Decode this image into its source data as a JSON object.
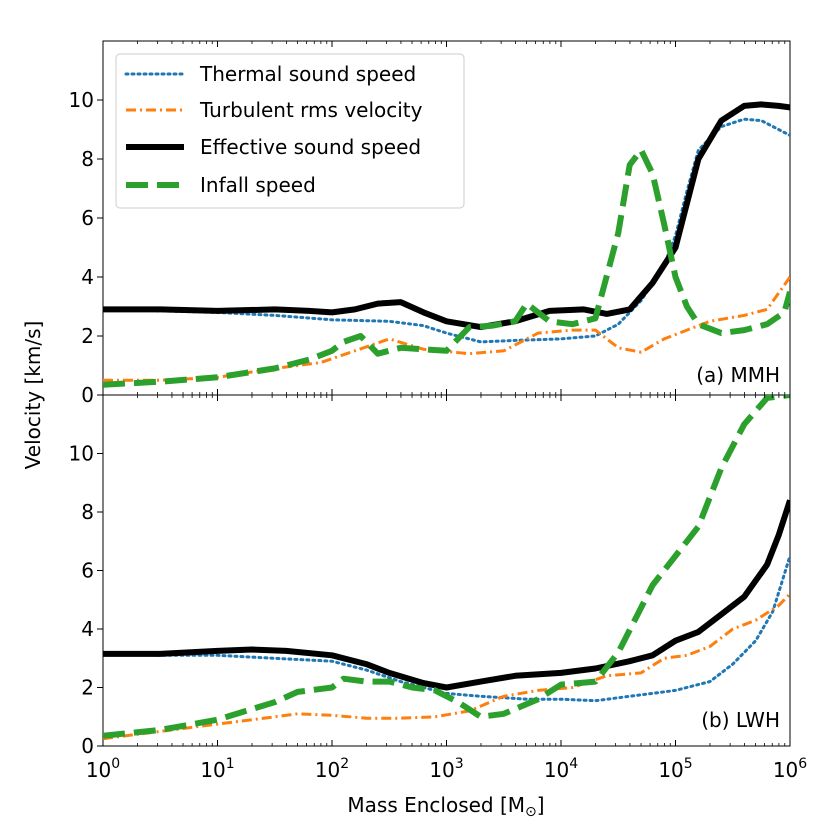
{
  "chart_data": {
    "type": "line",
    "xscale": "log",
    "xlim": [
      1,
      1000000
    ],
    "xlabel": "Mass Enclosed [M",
    "xlabel_sub": "⊙",
    "xlabel_end": "]",
    "ylabel": "Velocity [km/s]",
    "x_ticks": [
      {
        "value": 1,
        "base": "10",
        "exp": "0"
      },
      {
        "value": 10,
        "base": "10",
        "exp": "1"
      },
      {
        "value": 100,
        "base": "10",
        "exp": "2"
      },
      {
        "value": 1000,
        "base": "10",
        "exp": "3"
      },
      {
        "value": 10000,
        "base": "10",
        "exp": "4"
      },
      {
        "value": 100000,
        "base": "10",
        "exp": "5"
      },
      {
        "value": 1000000,
        "base": "10",
        "exp": "6"
      }
    ],
    "legend": [
      {
        "name": "Thermal sound speed",
        "color": "#1f77b4",
        "style": "dotted"
      },
      {
        "name": "Turbulent rms velocity",
        "color": "#ff7f0e",
        "style": "dashdot"
      },
      {
        "name": "Effective sound speed",
        "color": "#000000",
        "style": "solid"
      },
      {
        "name": "Infall speed",
        "color": "#2ca02c",
        "style": "dashed"
      }
    ],
    "panels": [
      {
        "label": "(a) MMH",
        "ylim": [
          0,
          12
        ],
        "yticks": [
          "0",
          "2",
          "4",
          "6",
          "8",
          "10"
        ],
        "ytick_values": [
          0,
          2,
          4,
          6,
          8,
          10
        ],
        "series": [
          {
            "name": "Thermal sound speed",
            "color": "#1f77b4",
            "style": "dotted",
            "points": [
              [
                0,
                2.9
              ],
              [
                0.5,
                2.85
              ],
              [
                1,
                2.8
              ],
              [
                1.5,
                2.7
              ],
              [
                2,
                2.55
              ],
              [
                2.5,
                2.5
              ],
              [
                2.8,
                2.35
              ],
              [
                3,
                2.1
              ],
              [
                3.3,
                1.8
              ],
              [
                3.6,
                1.85
              ],
              [
                4,
                1.9
              ],
              [
                4.3,
                2
              ],
              [
                4.5,
                2.4
              ],
              [
                4.7,
                3.2
              ],
              [
                4.9,
                4.4
              ],
              [
                5,
                5.4
              ],
              [
                5.1,
                6.9
              ],
              [
                5.2,
                8.3
              ],
              [
                5.4,
                9.1
              ],
              [
                5.6,
                9.35
              ],
              [
                5.75,
                9.3
              ],
              [
                5.9,
                9.0
              ],
              [
                6,
                8.8
              ]
            ]
          },
          {
            "name": "Turbulent rms velocity",
            "color": "#ff7f0e",
            "style": "dashdot",
            "points": [
              [
                0,
                0.5
              ],
              [
                0.5,
                0.5
              ],
              [
                1,
                0.6
              ],
              [
                1.5,
                0.9
              ],
              [
                1.9,
                1.1
              ],
              [
                2.2,
                1.5
              ],
              [
                2.5,
                1.9
              ],
              [
                2.8,
                1.55
              ],
              [
                3.2,
                1.4
              ],
              [
                3.5,
                1.5
              ],
              [
                3.8,
                2.1
              ],
              [
                4.1,
                2.2
              ],
              [
                4.3,
                2.2
              ],
              [
                4.5,
                1.6
              ],
              [
                4.7,
                1.45
              ],
              [
                4.9,
                1.9
              ],
              [
                5.1,
                2.2
              ],
              [
                5.3,
                2.5
              ],
              [
                5.6,
                2.7
              ],
              [
                5.8,
                2.9
              ],
              [
                6,
                4.0
              ]
            ]
          },
          {
            "name": "Effective sound speed",
            "color": "#000000",
            "style": "solid",
            "points": [
              [
                0,
                2.9
              ],
              [
                0.5,
                2.9
              ],
              [
                1,
                2.85
              ],
              [
                1.5,
                2.9
              ],
              [
                1.8,
                2.85
              ],
              [
                2,
                2.8
              ],
              [
                2.2,
                2.9
              ],
              [
                2.4,
                3.1
              ],
              [
                2.6,
                3.15
              ],
              [
                2.8,
                2.8
              ],
              [
                3,
                2.5
              ],
              [
                3.3,
                2.3
              ],
              [
                3.6,
                2.5
              ],
              [
                3.9,
                2.85
              ],
              [
                4.2,
                2.9
              ],
              [
                4.4,
                2.75
              ],
              [
                4.6,
                2.9
              ],
              [
                4.8,
                3.8
              ],
              [
                5,
                5.0
              ],
              [
                5.2,
                8.0
              ],
              [
                5.4,
                9.3
              ],
              [
                5.6,
                9.8
              ],
              [
                5.75,
                9.85
              ],
              [
                5.9,
                9.8
              ],
              [
                6,
                9.75
              ]
            ]
          },
          {
            "name": "Infall speed",
            "color": "#2ca02c",
            "style": "dashed",
            "points": [
              [
                0,
                0.35
              ],
              [
                0.5,
                0.45
              ],
              [
                1,
                0.6
              ],
              [
                1.5,
                0.9
              ],
              [
                1.8,
                1.2
              ],
              [
                2,
                1.5
              ],
              [
                2.1,
                1.8
              ],
              [
                2.25,
                2.0
              ],
              [
                2.4,
                1.4
              ],
              [
                2.6,
                1.6
              ],
              [
                2.8,
                1.55
              ],
              [
                3,
                1.5
              ],
              [
                3.2,
                2.3
              ],
              [
                3.4,
                2.35
              ],
              [
                3.6,
                2.5
              ],
              [
                3.7,
                3.1
              ],
              [
                3.9,
                2.5
              ],
              [
                4.1,
                2.4
              ],
              [
                4.3,
                2.6
              ],
              [
                4.5,
                5.5
              ],
              [
                4.6,
                7.8
              ],
              [
                4.7,
                8.3
              ],
              [
                4.8,
                7.5
              ],
              [
                4.9,
                5.8
              ],
              [
                5,
                4.0
              ],
              [
                5.1,
                3.0
              ],
              [
                5.2,
                2.4
              ],
              [
                5.4,
                2.1
              ],
              [
                5.6,
                2.2
              ],
              [
                5.8,
                2.4
              ],
              [
                5.95,
                2.8
              ],
              [
                6,
                3.5
              ]
            ]
          }
        ]
      },
      {
        "label": "(b) LWH",
        "ylim": [
          0,
          12
        ],
        "yticks": [
          "0",
          "2",
          "4",
          "6",
          "8",
          "10"
        ],
        "ytick_values": [
          0,
          2,
          4,
          6,
          8,
          10
        ],
        "series": [
          {
            "name": "Thermal sound speed",
            "color": "#1f77b4",
            "style": "dotted",
            "points": [
              [
                0,
                3.15
              ],
              [
                0.5,
                3.1
              ],
              [
                1,
                3.1
              ],
              [
                1.5,
                3.0
              ],
              [
                2,
                2.9
              ],
              [
                2.3,
                2.6
              ],
              [
                2.6,
                2.2
              ],
              [
                3,
                1.8
              ],
              [
                3.3,
                1.7
              ],
              [
                3.7,
                1.6
              ],
              [
                4,
                1.6
              ],
              [
                4.3,
                1.55
              ],
              [
                4.6,
                1.7
              ],
              [
                5,
                1.9
              ],
              [
                5.3,
                2.2
              ],
              [
                5.5,
                2.8
              ],
              [
                5.7,
                3.6
              ],
              [
                5.85,
                4.6
              ],
              [
                6,
                6.5
              ]
            ]
          },
          {
            "name": "Turbulent rms velocity",
            "color": "#ff7f0e",
            "style": "dashdot",
            "points": [
              [
                0,
                0.25
              ],
              [
                0.5,
                0.5
              ],
              [
                1,
                0.75
              ],
              [
                1.5,
                1.0
              ],
              [
                1.7,
                1.1
              ],
              [
                2,
                1.05
              ],
              [
                2.3,
                0.95
              ],
              [
                2.6,
                0.95
              ],
              [
                2.9,
                1.0
              ],
              [
                3.2,
                1.2
              ],
              [
                3.5,
                1.7
              ],
              [
                3.8,
                1.9
              ],
              [
                4.1,
                2.0
              ],
              [
                4.4,
                2.4
              ],
              [
                4.7,
                2.5
              ],
              [
                4.9,
                3.0
              ],
              [
                5.1,
                3.1
              ],
              [
                5.3,
                3.4
              ],
              [
                5.5,
                4.0
              ],
              [
                5.7,
                4.3
              ],
              [
                5.9,
                4.8
              ],
              [
                6,
                5.2
              ]
            ]
          },
          {
            "name": "Effective sound speed",
            "color": "#000000",
            "style": "solid",
            "points": [
              [
                0,
                3.15
              ],
              [
                0.5,
                3.15
              ],
              [
                1,
                3.25
              ],
              [
                1.3,
                3.3
              ],
              [
                1.6,
                3.25
              ],
              [
                2,
                3.1
              ],
              [
                2.3,
                2.8
              ],
              [
                2.5,
                2.5
              ],
              [
                2.8,
                2.15
              ],
              [
                3,
                2.0
              ],
              [
                3.3,
                2.2
              ],
              [
                3.6,
                2.4
              ],
              [
                4,
                2.5
              ],
              [
                4.3,
                2.65
              ],
              [
                4.6,
                2.9
              ],
              [
                4.8,
                3.1
              ],
              [
                5,
                3.6
              ],
              [
                5.2,
                3.9
              ],
              [
                5.4,
                4.5
              ],
              [
                5.6,
                5.1
              ],
              [
                5.8,
                6.2
              ],
              [
                5.9,
                7.2
              ],
              [
                6,
                8.4
              ]
            ]
          },
          {
            "name": "Infall speed",
            "color": "#2ca02c",
            "style": "dashed",
            "points": [
              [
                0,
                0.35
              ],
              [
                0.5,
                0.55
              ],
              [
                1,
                0.9
              ],
              [
                1.5,
                1.5
              ],
              [
                1.7,
                1.85
              ],
              [
                2,
                2.0
              ],
              [
                2.1,
                2.3
              ],
              [
                2.3,
                2.2
              ],
              [
                2.5,
                2.2
              ],
              [
                2.7,
                2.0
              ],
              [
                2.9,
                1.9
              ],
              [
                3.1,
                1.5
              ],
              [
                3.3,
                1.0
              ],
              [
                3.5,
                1.1
              ],
              [
                3.8,
                1.6
              ],
              [
                4,
                2.1
              ],
              [
                4.3,
                2.2
              ],
              [
                4.5,
                3.2
              ],
              [
                4.8,
                5.5
              ],
              [
                5,
                6.5
              ],
              [
                5.2,
                7.5
              ],
              [
                5.4,
                9.5
              ],
              [
                5.6,
                11.0
              ],
              [
                5.8,
                11.9
              ],
              [
                6,
                12.0
              ]
            ]
          }
        ]
      }
    ]
  }
}
